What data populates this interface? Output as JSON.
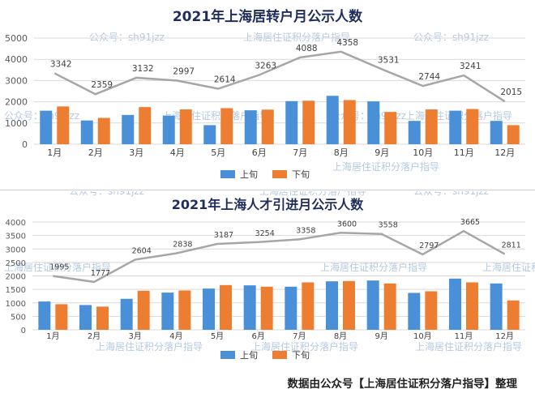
{
  "colors": {
    "series1": "#4a90d9",
    "series2": "#ed7d31",
    "total_line": "#a6a6a6",
    "watermark": "#9bb6d6"
  },
  "watermarks": {
    "account": "公众号：sh91jzz",
    "service": "上海居住证积分落户指导"
  },
  "footer": "数据由公众号【上海居住证积分落户指导】整理",
  "chart_data": [
    {
      "type": "bar",
      "title": "2021年上海居转户月公示人数",
      "categories": [
        "1月",
        "2月",
        "3月",
        "4月",
        "5月",
        "6月",
        "7月",
        "8月",
        "9月",
        "10月",
        "11月",
        "12月"
      ],
      "series": [
        {
          "name": "上旬",
          "values": [
            1580,
            1120,
            1380,
            1350,
            900,
            1600,
            2030,
            2280,
            2020,
            1100,
            1580,
            1100
          ]
        },
        {
          "name": "下旬",
          "values": [
            1780,
            1240,
            1750,
            1640,
            1700,
            1630,
            2050,
            2080,
            1520,
            1640,
            1660,
            900
          ]
        }
      ],
      "line": {
        "values": [
          3342,
          2359,
          3132,
          2997,
          2614,
          3263,
          4088,
          4358,
          3531,
          2744,
          3241,
          2015
        ]
      },
      "ylim": [
        0,
        5000
      ],
      "yticks": [
        0,
        1000,
        2000,
        3000,
        4000,
        5000
      ],
      "legend": "bottom",
      "grid": true
    },
    {
      "type": "bar",
      "title": "2021年上海人才引进月公示人数",
      "categories": [
        "1月",
        "2月",
        "3月",
        "4月",
        "5月",
        "6月",
        "7月",
        "8月",
        "9月",
        "10月",
        "11月",
        "12月"
      ],
      "series": [
        {
          "name": "上旬",
          "values": [
            1050,
            920,
            1150,
            1380,
            1530,
            1650,
            1600,
            1800,
            1830,
            1370,
            1900,
            1720
          ]
        },
        {
          "name": "下旬",
          "values": [
            950,
            860,
            1450,
            1460,
            1660,
            1600,
            1760,
            1810,
            1720,
            1430,
            1760,
            1090
          ]
        }
      ],
      "line": {
        "values": [
          1995,
          1777,
          2604,
          2838,
          3187,
          3254,
          3358,
          3600,
          3558,
          2797,
          3665,
          2811
        ]
      },
      "ylim": [
        0,
        4000
      ],
      "yticks": [
        0,
        500,
        1000,
        1500,
        2000,
        2500,
        3000,
        3500,
        4000
      ],
      "legend": "bottom",
      "grid": true
    }
  ]
}
